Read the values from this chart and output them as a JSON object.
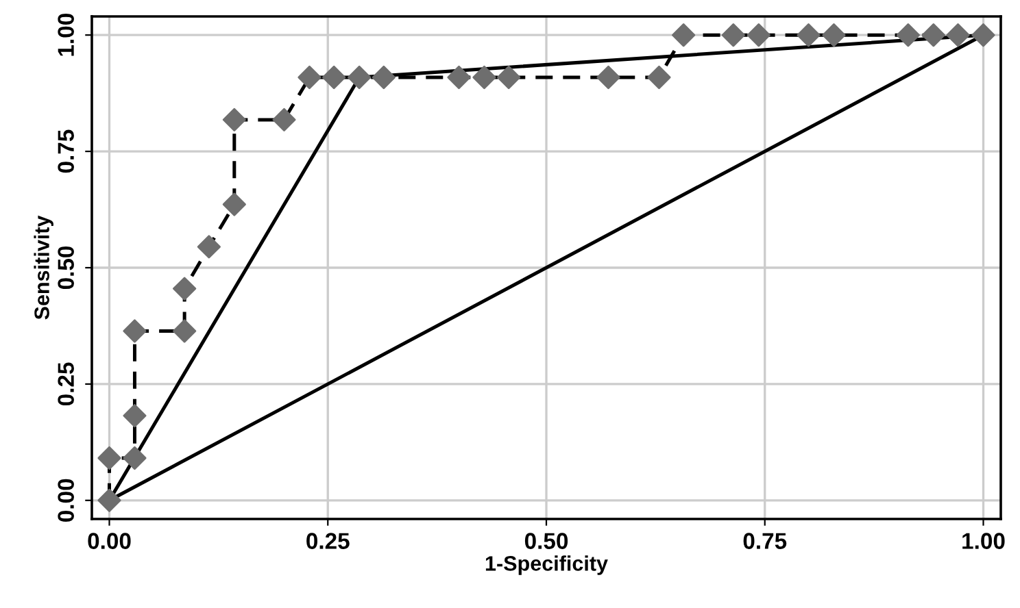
{
  "chart_data": {
    "type": "line",
    "xlabel": "1-Specificity",
    "ylabel": "Sensitivity",
    "series": [
      {
        "color": "#000000",
        "marker": "none",
        "line_style": "dashed",
        "x": [
          0,
          0,
          0.029,
          0.029,
          0.029,
          0.086,
          0.086,
          0.114,
          0.143,
          0.143,
          0.2,
          0.229,
          0.257,
          0.286,
          0.314,
          0.4,
          0.429,
          0.457,
          0.571,
          0.629,
          0.657,
          0.714,
          0.743,
          0.8,
          0.829,
          0.914,
          0.943,
          0.971,
          1
        ],
        "values": [
          0,
          0.091,
          0.091,
          0.182,
          0.364,
          0.364,
          0.455,
          0.545,
          0.636,
          0.818,
          0.818,
          0.909,
          0.909,
          0.909,
          0.909,
          0.909,
          0.909,
          0.909,
          0.909,
          0.909,
          1,
          1,
          1,
          1,
          1,
          1,
          1,
          1,
          1
        ]
      },
      {
        "type": "scatter",
        "color": "#6e6e6e",
        "marker": "diamond",
        "x": [
          0,
          0,
          0.029,
          0.029,
          0.029,
          0.086,
          0.086,
          0.114,
          0.143,
          0.143,
          0.2,
          0.229,
          0.257,
          0.286,
          0.314,
          0.4,
          0.429,
          0.457,
          0.571,
          0.629,
          0.657,
          0.714,
          0.743,
          0.8,
          0.829,
          0.914,
          0.943,
          0.971,
          1
        ],
        "values": [
          0,
          0.091,
          0.091,
          0.182,
          0.364,
          0.364,
          0.455,
          0.545,
          0.636,
          0.818,
          0.818,
          0.909,
          0.909,
          0.909,
          0.909,
          0.909,
          0.909,
          0.909,
          0.909,
          0.909,
          1,
          1,
          1,
          1,
          1,
          1,
          1,
          1,
          1
        ]
      },
      {
        "color": "#000000",
        "marker": "none",
        "line_style": "solid",
        "x": [
          0,
          0.286,
          1
        ],
        "values": [
          0,
          0.909,
          1
        ]
      },
      {
        "color": "#000000",
        "marker": "none",
        "line_style": "solid",
        "x": [
          0,
          1
        ],
        "values": [
          0,
          1
        ]
      }
    ],
    "xlim": [
      -0.02,
      1.02
    ],
    "ylim": [
      -0.04,
      1.04
    ],
    "xticks": [
      {
        "value": 0,
        "label": "0.00"
      },
      {
        "value": 0.25,
        "label": "0.25"
      },
      {
        "value": 0.5,
        "label": "0.50"
      },
      {
        "value": 0.75,
        "label": "0.75"
      },
      {
        "value": 1,
        "label": "1.00"
      }
    ],
    "yticks": [
      {
        "value": 0,
        "label": "0.00"
      },
      {
        "value": 0.25,
        "label": "0.25"
      },
      {
        "value": 0.5,
        "label": "0.50"
      },
      {
        "value": 0.75,
        "label": "0.75"
      },
      {
        "value": 1,
        "label": "1.00"
      }
    ],
    "grid": true
  }
}
